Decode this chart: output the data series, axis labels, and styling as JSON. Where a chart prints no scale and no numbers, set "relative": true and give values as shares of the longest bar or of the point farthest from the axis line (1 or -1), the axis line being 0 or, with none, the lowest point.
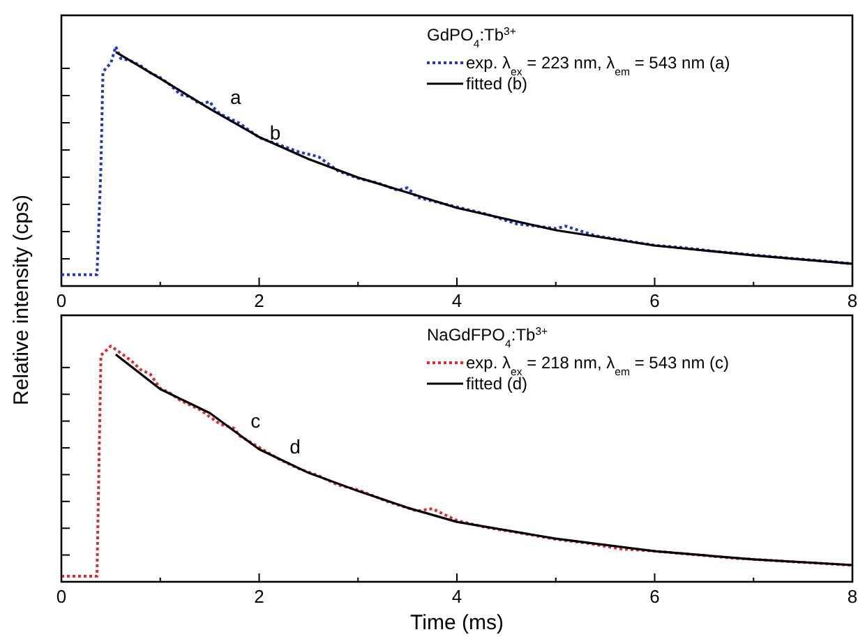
{
  "chart_data": [
    {
      "type": "line",
      "relative": true,
      "legend_title": "GdPO$_{4}$:Tb$^{3+}$",
      "legend": "top right",
      "xlim": [
        0,
        8
      ],
      "xticks": [
        0,
        {
          "value": 1,
          "label": null
        },
        2,
        {
          "value": 3,
          "label": null
        },
        4,
        {
          "value": 5,
          "label": null
        },
        6,
        {
          "value": 7,
          "label": null
        },
        8
      ],
      "annotations": [
        "a",
        "b"
      ],
      "series": [
        {
          "name": "exp. λ$_{ex}$ = 223 nm, λ$_{em}$ = 543 nm (a)",
          "color": "#1f35d8",
          "line_style": "dotted",
          "x": [
            0,
            0.1,
            0.2,
            0.3,
            0.36,
            0.4,
            0.42,
            0.45,
            0.5,
            0.55,
            0.6,
            0.7,
            0.8,
            0.9,
            1.0,
            1.1,
            1.2,
            1.3,
            1.4,
            1.5,
            1.55,
            1.6,
            1.8,
            2.0,
            2.2,
            2.4,
            2.6,
            2.8,
            3.0,
            3.2,
            3.4,
            3.5,
            3.6,
            3.8,
            4.0,
            4.3,
            4.6,
            5.0,
            5.1,
            5.4,
            5.7,
            6.0,
            6.3,
            6.6,
            7.0,
            7.4,
            7.7,
            8.0
          ],
          "values": [
            0.047,
            0.047,
            0.047,
            0.047,
            0.047,
            0.5,
            0.89,
            0.91,
            0.93,
            1.0,
            0.95,
            0.94,
            0.92,
            0.89,
            0.87,
            0.84,
            0.8,
            0.79,
            0.76,
            0.77,
            0.74,
            0.72,
            0.68,
            0.62,
            0.59,
            0.56,
            0.54,
            0.48,
            0.45,
            0.43,
            0.4,
            0.41,
            0.37,
            0.35,
            0.33,
            0.3,
            0.26,
            0.24,
            0.25,
            0.21,
            0.19,
            0.17,
            0.16,
            0.145,
            0.13,
            0.115,
            0.105,
            0.093
          ]
        },
        {
          "name": "fitted (b)",
          "color": "#000000",
          "line_style": "solid",
          "x": [
            0.55,
            1,
            1.5,
            2,
            2.5,
            3,
            3.5,
            4,
            5,
            6,
            7,
            8
          ],
          "values": [
            0.977,
            0.866,
            0.74,
            0.622,
            0.53,
            0.453,
            0.39,
            0.326,
            0.233,
            0.169,
            0.128,
            0.093
          ]
        }
      ]
    },
    {
      "type": "line",
      "relative": true,
      "legend_title": "NaGdFPO$_{4}$:Tb$^{3+}$",
      "legend": "top right",
      "xlabel": "Time (ms)",
      "ylabel": "Relative intensity (cps)",
      "xlim": [
        0,
        8
      ],
      "xticks": [
        0,
        {
          "value": 1,
          "label": null
        },
        2,
        {
          "value": 3,
          "label": null
        },
        4,
        {
          "value": 5,
          "label": null
        },
        6,
        {
          "value": 7,
          "label": null
        },
        8
      ],
      "annotations": [
        "c",
        "d"
      ],
      "series": [
        {
          "name": "exp. λ$_{ex}$ = 218 nm, λ$_{em}$ = 543 nm (c)",
          "color": "#e8282a",
          "line_style": "dotted",
          "x": [
            0,
            0.1,
            0.2,
            0.3,
            0.36,
            0.4,
            0.45,
            0.5,
            0.6,
            0.7,
            0.8,
            0.9,
            1.0,
            1.1,
            1.2,
            1.4,
            1.6,
            1.75,
            1.8,
            2.0,
            2.2,
            2.4,
            2.6,
            2.8,
            3.0,
            3.3,
            3.6,
            3.75,
            4.0,
            4.3,
            4.6,
            5.0,
            5.3,
            5.65,
            6.0,
            6.4,
            6.8,
            7.2,
            7.6,
            8.0
          ],
          "values": [
            0.024,
            0.024,
            0.024,
            0.024,
            0.024,
            0.96,
            0.98,
            1.0,
            0.97,
            0.94,
            0.9,
            0.88,
            0.82,
            0.8,
            0.77,
            0.73,
            0.67,
            0.65,
            0.62,
            0.57,
            0.52,
            0.48,
            0.45,
            0.41,
            0.39,
            0.34,
            0.3,
            0.31,
            0.26,
            0.23,
            0.21,
            0.18,
            0.165,
            0.14,
            0.13,
            0.115,
            0.1,
            0.09,
            0.08,
            0.07
          ]
        },
        {
          "name": "fitted (d)",
          "color": "#000000",
          "line_style": "solid",
          "x": [
            0.55,
            1,
            1.5,
            2,
            2.5,
            3,
            3.5,
            4,
            5,
            6,
            7,
            8
          ],
          "values": [
            0.964,
            0.817,
            0.716,
            0.562,
            0.462,
            0.385,
            0.314,
            0.254,
            0.183,
            0.13,
            0.095,
            0.071
          ]
        }
      ]
    }
  ]
}
